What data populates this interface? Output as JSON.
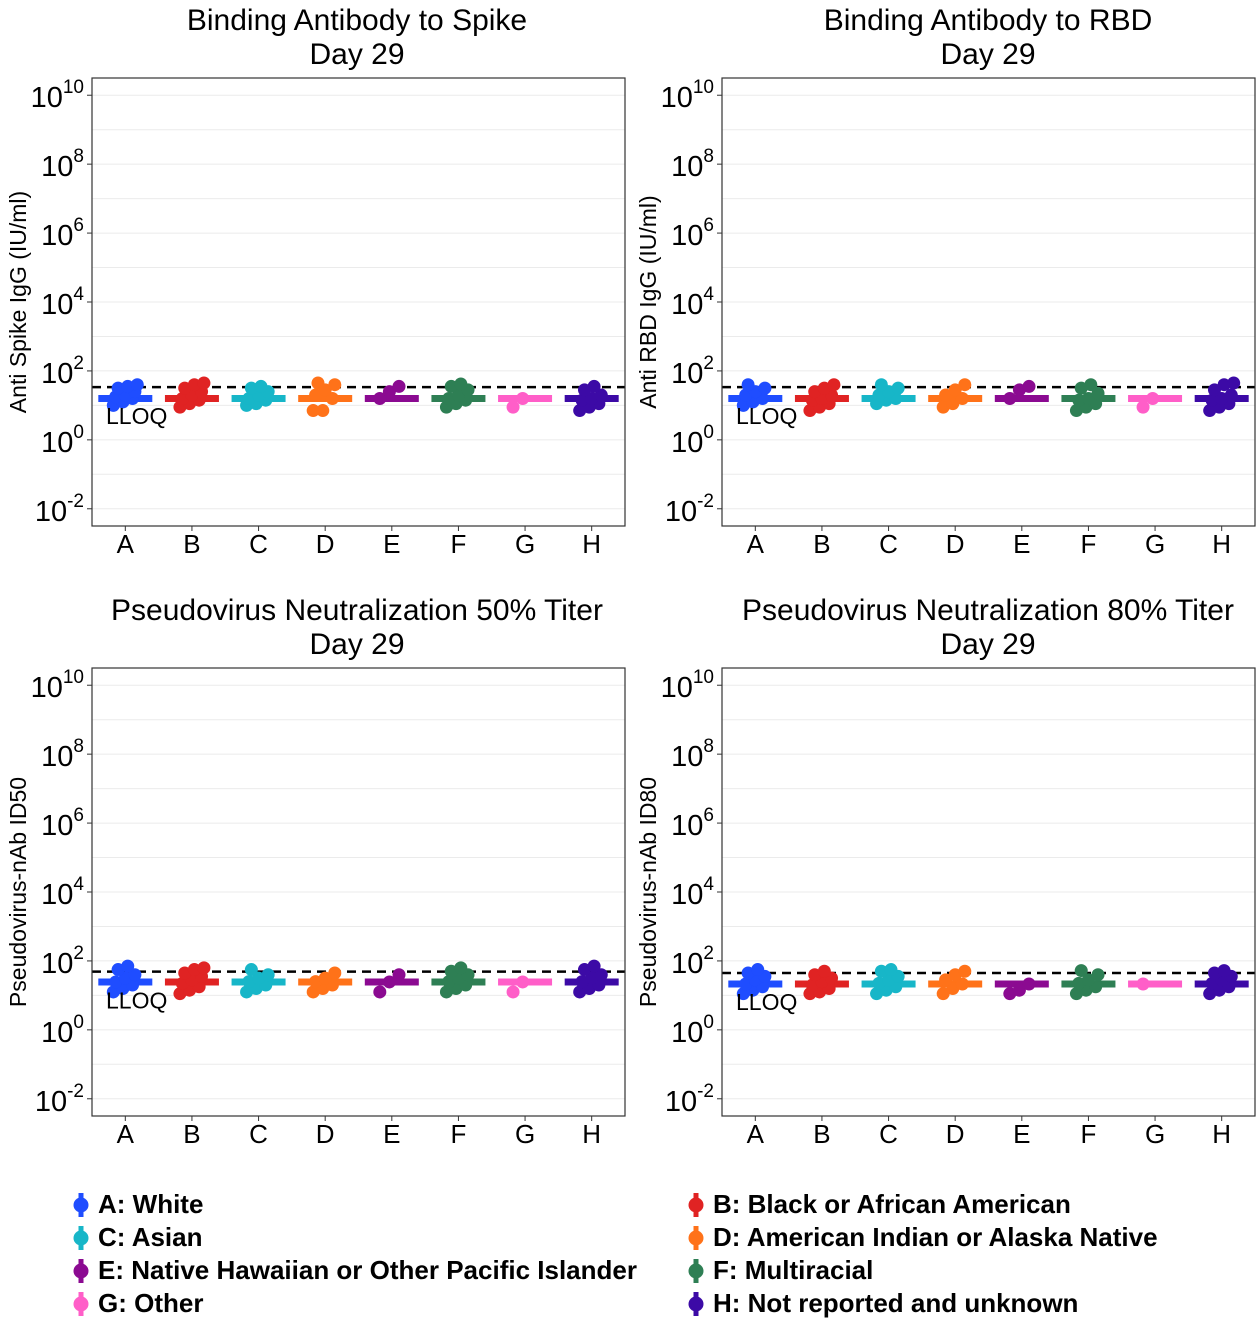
{
  "categories": [
    "A",
    "B",
    "C",
    "D",
    "E",
    "F",
    "G",
    "H"
  ],
  "colors": [
    "#1f4dff",
    "#e02323",
    "#17b6c8",
    "#ff7219",
    "#8b0a91",
    "#2e7f54",
    "#ff5ec8",
    "#3c0aa6"
  ],
  "yticks": [
    {
      "base": "10",
      "exp": "10"
    },
    {
      "base": "10",
      "exp": "8"
    },
    {
      "base": "10",
      "exp": "6"
    },
    {
      "base": "10",
      "exp": "4"
    },
    {
      "base": "10",
      "exp": "2"
    },
    {
      "base": "10",
      "exp": "0"
    },
    {
      "base": "10",
      "exp": "-2"
    }
  ],
  "lloq_label": "LLOQ",
  "legend": [
    {
      "label": "A: White",
      "color": "#1f4dff"
    },
    {
      "label": "B: Black or African American",
      "color": "#e02323"
    },
    {
      "label": "C: Asian",
      "color": "#17b6c8"
    },
    {
      "label": "D: American Indian or Alaska Native",
      "color": "#ff7219"
    },
    {
      "label": "E: Native Hawaiian or Other Pacific Islander",
      "color": "#8b0a91"
    },
    {
      "label": "F: Multiracial",
      "color": "#2e7f54"
    },
    {
      "label": "G: Other",
      "color": "#ff5ec8"
    },
    {
      "label": "H: Not reported and unknown",
      "color": "#3c0aa6"
    }
  ],
  "chart_data": [
    {
      "type": "scatter",
      "title": [
        "Binding Antibody to Spike",
        "Day 29"
      ],
      "ylabel": "Anti Spike IgG (IU/ml)",
      "yscale": "log10",
      "ylim_log10": [
        -2.5,
        10.5
      ],
      "lloq_log10": 1.53,
      "medians_log10": [
        1.2,
        1.2,
        1.2,
        1.2,
        1.2,
        1.2,
        1.2,
        1.2
      ],
      "points_log10": [
        [
          1.0,
          1.1,
          1.2,
          1.25,
          1.3,
          1.4,
          1.5,
          1.55,
          1.6
        ],
        [
          0.95,
          1.05,
          1.15,
          1.2,
          1.3,
          1.4,
          1.5,
          1.6,
          1.65
        ],
        [
          1.0,
          1.05,
          1.15,
          1.2,
          1.3,
          1.4,
          1.5,
          1.55
        ],
        [
          0.85,
          0.85,
          1.2,
          1.3,
          1.45,
          1.6,
          1.65
        ],
        [
          1.2,
          1.4,
          1.55
        ],
        [
          0.95,
          1.05,
          1.15,
          1.2,
          1.3,
          1.45,
          1.55,
          1.62
        ],
        [
          0.95,
          1.2
        ],
        [
          0.85,
          0.95,
          1.05,
          1.15,
          1.2,
          1.3,
          1.45,
          1.55
        ]
      ]
    },
    {
      "type": "scatter",
      "title": [
        "Binding Antibody to RBD",
        "Day 29"
      ],
      "ylabel": "Anti RBD IgG (IU/ml)",
      "yscale": "log10",
      "ylim_log10": [
        -2.5,
        10.5
      ],
      "lloq_log10": 1.53,
      "medians_log10": [
        1.2,
        1.2,
        1.2,
        1.2,
        1.2,
        1.2,
        1.2,
        1.2
      ],
      "points_log10": [
        [
          1.0,
          1.1,
          1.2,
          1.3,
          1.4,
          1.5,
          1.6
        ],
        [
          0.85,
          0.95,
          1.05,
          1.15,
          1.2,
          1.3,
          1.4,
          1.5,
          1.6
        ],
        [
          1.05,
          1.15,
          1.2,
          1.3,
          1.4,
          1.5,
          1.6
        ],
        [
          0.95,
          1.05,
          1.2,
          1.3,
          1.45,
          1.6
        ],
        [
          1.2,
          1.45,
          1.55
        ],
        [
          0.85,
          0.95,
          1.05,
          1.15,
          1.2,
          1.35,
          1.5,
          1.6
        ],
        [
          0.95,
          1.2
        ],
        [
          0.85,
          0.95,
          1.05,
          1.15,
          1.2,
          1.3,
          1.45,
          1.6,
          1.65
        ]
      ]
    },
    {
      "type": "scatter",
      "title": [
        "Pseudovirus Neutralization 50% Titer",
        "Day 29"
      ],
      "ylabel": "Pseudovirus-nAb ID50",
      "yscale": "log10",
      "ylim_log10": [
        -2.5,
        10.5
      ],
      "lloq_log10": 1.69,
      "medians_log10": [
        1.39,
        1.39,
        1.39,
        1.39,
        1.39,
        1.39,
        1.39,
        1.39
      ],
      "points_log10": [
        [
          1.1,
          1.2,
          1.3,
          1.39,
          1.5,
          1.6,
          1.75,
          1.85
        ],
        [
          1.05,
          1.15,
          1.25,
          1.35,
          1.45,
          1.55,
          1.65,
          1.75,
          1.8
        ],
        [
          1.1,
          1.2,
          1.3,
          1.4,
          1.5,
          1.6,
          1.75
        ],
        [
          1.1,
          1.2,
          1.3,
          1.4,
          1.5,
          1.65
        ],
        [
          1.1,
          1.39,
          1.6
        ],
        [
          1.1,
          1.2,
          1.3,
          1.4,
          1.5,
          1.6,
          1.7,
          1.8
        ],
        [
          1.1,
          1.39
        ],
        [
          1.1,
          1.2,
          1.3,
          1.4,
          1.5,
          1.6,
          1.75,
          1.85
        ]
      ]
    },
    {
      "type": "scatter",
      "title": [
        "Pseudovirus Neutralization 80% Titer",
        "Day 29"
      ],
      "ylabel": "Pseudovirus-nAb ID80",
      "yscale": "log10",
      "ylim_log10": [
        -2.5,
        10.5
      ],
      "lloq_log10": 1.65,
      "medians_log10": [
        1.33,
        1.33,
        1.33,
        1.33,
        1.33,
        1.33,
        1.33,
        1.33
      ],
      "points_log10": [
        [
          1.05,
          1.15,
          1.25,
          1.33,
          1.45,
          1.55,
          1.65,
          1.75
        ],
        [
          1.05,
          1.1,
          1.2,
          1.3,
          1.4,
          1.5,
          1.6,
          1.7
        ],
        [
          1.05,
          1.15,
          1.25,
          1.35,
          1.45,
          1.55,
          1.7,
          1.75
        ],
        [
          1.05,
          1.2,
          1.33,
          1.45,
          1.6,
          1.7
        ],
        [
          1.05,
          1.15,
          1.33
        ],
        [
          1.05,
          1.15,
          1.25,
          1.35,
          1.45,
          1.6,
          1.72
        ],
        [
          1.33
        ],
        [
          1.05,
          1.15,
          1.25,
          1.35,
          1.45,
          1.55,
          1.65,
          1.72
        ]
      ]
    }
  ]
}
